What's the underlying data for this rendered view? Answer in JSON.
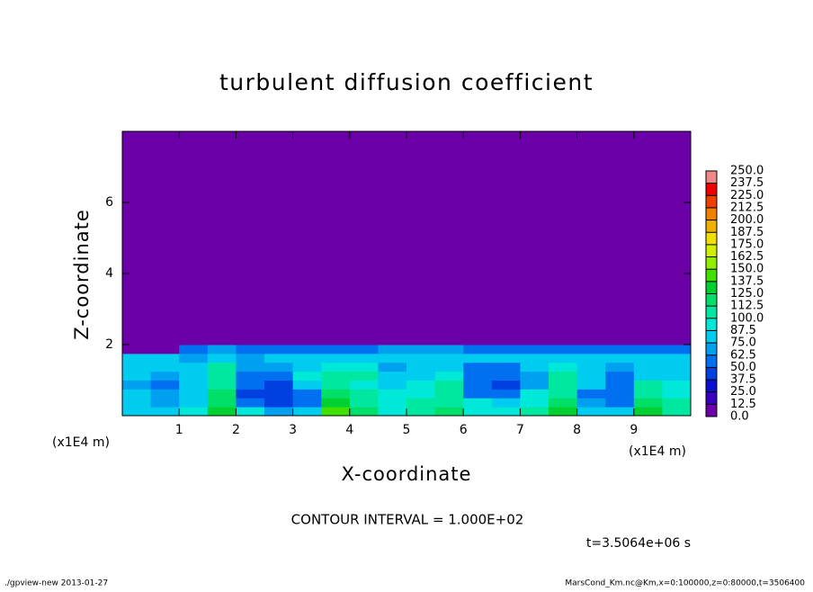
{
  "chart_data": {
    "type": "contour",
    "title": "turbulent diffusion coefficient",
    "xlabel": "X-coordinate",
    "ylabel": "Z-coordinate",
    "xunit": "(x1E4 m)",
    "yunit": "(x1E4 m)",
    "xlim": [
      0,
      10
    ],
    "ylim": [
      0,
      8
    ],
    "xticks": [
      1,
      2,
      3,
      4,
      5,
      6,
      7,
      8,
      9
    ],
    "yticks": [
      2,
      4,
      6
    ],
    "x_edges": [
      0,
      0.5,
      1,
      1.5,
      2,
      2.5,
      3,
      3.5,
      4,
      4.5,
      5,
      5.5,
      6,
      6.5,
      7,
      7.5,
      8,
      8.5,
      9,
      9.5,
      10
    ],
    "z_edges": [
      0,
      0.25,
      0.5,
      0.75,
      1,
      1.25,
      1.5,
      1.75,
      2,
      8
    ],
    "field": [
      [
        85,
        80,
        90,
        130,
        95,
        70,
        75,
        140,
        120,
        95,
        110,
        120,
        95,
        90,
        100,
        130,
        85,
        80,
        130,
        110
      ],
      [
        80,
        70,
        85,
        120,
        55,
        45,
        60,
        130,
        110,
        90,
        100,
        110,
        90,
        85,
        95,
        120,
        70,
        60,
        120,
        100
      ],
      [
        75,
        65,
        80,
        115,
        45,
        40,
        55,
        120,
        100,
        90,
        95,
        100,
        60,
        55,
        90,
        110,
        60,
        50,
        110,
        95
      ],
      [
        70,
        60,
        75,
        110,
        50,
        45,
        80,
        110,
        95,
        85,
        90,
        100,
        50,
        45,
        70,
        105,
        75,
        55,
        100,
        90
      ],
      [
        75,
        70,
        80,
        105,
        60,
        55,
        90,
        100,
        100,
        75,
        80,
        95,
        50,
        50,
        65,
        100,
        85,
        60,
        85,
        85
      ],
      [
        80,
        80,
        85,
        100,
        70,
        70,
        85,
        95,
        90,
        70,
        75,
        80,
        55,
        55,
        80,
        95,
        80,
        65,
        75,
        80
      ],
      [
        75,
        75,
        70,
        85,
        70,
        80,
        75,
        80,
        80,
        75,
        80,
        85,
        75,
        75,
        80,
        85,
        80,
        75,
        75,
        75
      ],
      [
        5,
        5,
        60,
        65,
        60,
        55,
        55,
        60,
        60,
        65,
        65,
        65,
        60,
        60,
        55,
        60,
        60,
        55,
        55,
        55
      ],
      [
        0,
        0,
        0,
        0,
        0,
        0,
        0,
        0,
        0,
        0,
        0,
        0,
        0,
        0,
        0,
        0,
        0,
        0,
        0,
        0
      ]
    ],
    "levels": [
      {
        "value": 0,
        "label": "0.0"
      },
      12.5,
      {
        "value": 25,
        "label": "25.0"
      },
      37.5,
      {
        "value": 50,
        "label": "50.0"
      },
      62.5,
      {
        "value": 75,
        "label": "75.0"
      },
      87.5,
      {
        "value": 100,
        "label": "100.0"
      },
      112.5,
      {
        "value": 125,
        "label": "125.0"
      },
      137.5,
      {
        "value": 150,
        "label": "150.0"
      },
      162.5,
      {
        "value": 175,
        "label": "175.0"
      },
      187.5,
      {
        "value": 200,
        "label": "200.0"
      },
      212.5,
      {
        "value": 225,
        "label": "225.0"
      },
      237.5,
      {
        "value": 250,
        "label": "250.0"
      }
    ],
    "colors": [
      "#6c00a8",
      "#3a00c0",
      "#0a10d0",
      "#0040e0",
      "#0070f0",
      "#00a0f0",
      "#00ccf0",
      "#00e8d8",
      "#00e8a0",
      "#00e068",
      "#00d030",
      "#40e000",
      "#90f000",
      "#d0f000",
      "#f0e000",
      "#f0b000",
      "#f08000",
      "#f04000",
      "#f00000",
      "#f08888"
    ],
    "contour_interval": "CONTOUR INTERVAL = 1.000E+02",
    "time": "t=3.5064e+06 s",
    "footer_left": "./gpview-new  2013-01-27",
    "footer_right": "MarsCond_Km.nc@Km,x=0:100000,z=0:80000,t=3506400"
  }
}
